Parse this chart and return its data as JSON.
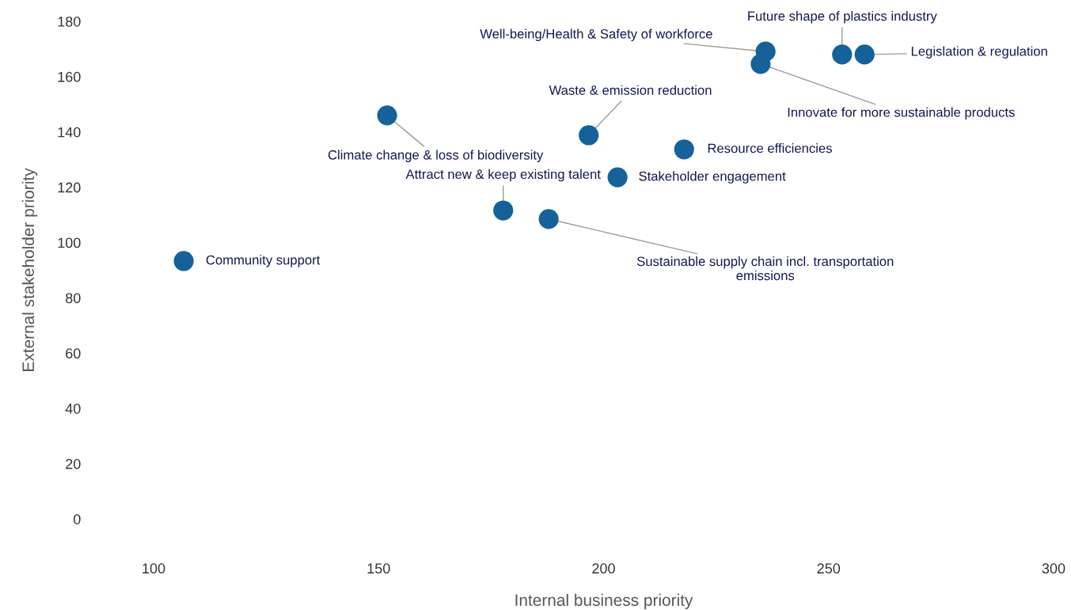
{
  "chart_data": {
    "type": "scatter",
    "xlabel": "Internal business priority",
    "ylabel": "External stakeholder priority",
    "color": "#15629b",
    "marker": "circle",
    "grid": false,
    "legend": false,
    "xlim": [
      100,
      300
    ],
    "xticks": [
      100,
      150,
      200,
      250,
      300
    ],
    "ylim": [
      0,
      180
    ],
    "yticks": [
      0,
      20,
      40,
      60,
      80,
      100,
      120,
      140,
      160,
      180
    ],
    "x": [
      106.7,
      151.9,
      177.7,
      187.8,
      196.7,
      203.1,
      217.9,
      234.9,
      236.0,
      253.0,
      258.0
    ],
    "values": [
      93.3,
      146.0,
      111.6,
      108.5,
      138.8,
      123.6,
      133.7,
      164.6,
      169.1,
      168.0,
      168.0
    ],
    "annotations": [
      {
        "text": "Community support",
        "x": 106.7,
        "y": 93.3
      },
      {
        "text": "Climate change & loss of biodiversity",
        "x": 151.9,
        "y": 146.0
      },
      {
        "text": "Attract new & keep existing talent",
        "x": 177.7,
        "y": 111.6
      },
      {
        "text": "Sustainable supply chain incl. transportation\nemissions",
        "x": 187.8,
        "y": 108.5
      },
      {
        "text": "Waste & emission reduction",
        "x": 196.7,
        "y": 138.8
      },
      {
        "text": "Stakeholder engagement",
        "x": 203.1,
        "y": 123.6
      },
      {
        "text": "Resource efficiencies",
        "x": 217.9,
        "y": 133.7
      },
      {
        "text": "Innovate for more sustainable products",
        "x": 234.9,
        "y": 164.6
      },
      {
        "text": "Well-being/Health & Safety of workforce",
        "x": 236.0,
        "y": 169.1
      },
      {
        "text": "Future shape of plastics industry",
        "x": 253.0,
        "y": 168.0
      },
      {
        "text": "Legislation & regulation",
        "x": 258.0,
        "y": 168.0
      }
    ]
  }
}
